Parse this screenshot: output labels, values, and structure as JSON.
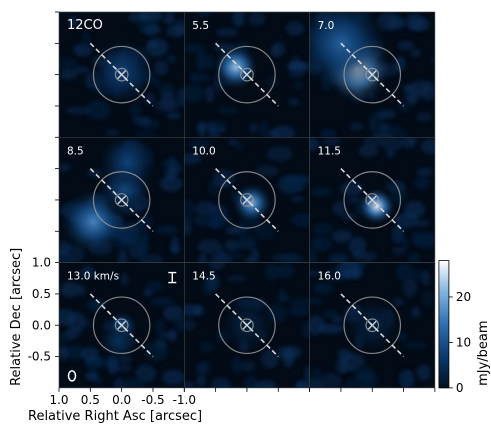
{
  "chart_data": {
    "type": "heatmap",
    "title": "12CO",
    "velocity_unit": "km/s",
    "panels": [
      {
        "label": "12CO",
        "velocity": null,
        "emission": [
          {
            "dx": 0.0,
            "dy": 0.05,
            "peak": 8,
            "sigma": 0.25
          }
        ]
      },
      {
        "label": "5.5",
        "velocity": 5.5,
        "emission": [
          {
            "dx": 0.18,
            "dy": 0.12,
            "peak": 22,
            "sigma": 0.17
          }
        ]
      },
      {
        "label": "7.0",
        "velocity": 7.0,
        "emission": [
          {
            "dx": 0.25,
            "dy": 0.1,
            "peak": 30,
            "sigma": 0.25
          },
          {
            "dx": 0.5,
            "dy": 0.5,
            "peak": 12,
            "sigma": 0.35
          }
        ]
      },
      {
        "label": "8.5",
        "velocity": 8.5,
        "emission": [
          {
            "dx": 0.45,
            "dy": -0.35,
            "peak": 16,
            "sigma": 0.25
          },
          {
            "dx": -0.05,
            "dy": 0.2,
            "peak": 10,
            "sigma": 0.2
          },
          {
            "dx": -0.1,
            "dy": 0.6,
            "peak": 8,
            "sigma": 0.22
          }
        ]
      },
      {
        "label": "10.0",
        "velocity": 10.0,
        "emission": [
          {
            "dx": -0.08,
            "dy": -0.05,
            "peak": 20,
            "sigma": 0.15
          }
        ]
      },
      {
        "label": "11.5",
        "velocity": 11.5,
        "emission": [
          {
            "dx": -0.07,
            "dy": -0.1,
            "peak": 26,
            "sigma": 0.14
          }
        ]
      },
      {
        "label": "13.0 km/s",
        "velocity": 13.0,
        "emission": [
          {
            "dx": 0.0,
            "dy": -0.03,
            "peak": 13,
            "sigma": 0.12
          },
          {
            "dx": 0.05,
            "dy": -0.25,
            "peak": 5,
            "sigma": 0.15
          }
        ]
      },
      {
        "label": "14.5",
        "velocity": 14.5,
        "emission": [
          {
            "dx": 0.0,
            "dy": 0.0,
            "peak": 3,
            "sigma": 0.2
          }
        ]
      },
      {
        "label": "16.0",
        "velocity": 16.0,
        "emission": [
          {
            "dx": 0.0,
            "dy": 0.0,
            "peak": 3,
            "sigma": 0.2
          }
        ]
      }
    ],
    "xlabel": "Relative Right Asc [arcsec]",
    "ylabel": "Relative Dec [arcsec]",
    "xlim": [
      1.0,
      -1.0
    ],
    "ylim": [
      -1.0,
      1.0
    ],
    "xticks": [
      1.0,
      0.5,
      0.0,
      -0.5,
      -1.0
    ],
    "xtick_labels": [
      "1.0",
      "0.5",
      "0.0",
      "-0.5",
      "-1.0"
    ],
    "yticks": [
      -0.5,
      0.0,
      0.5,
      1.0
    ],
    "ytick_labels": [
      "-0.5",
      "0.0",
      "0.5",
      "1.0"
    ],
    "colorbar": {
      "label": "mJy/beam",
      "ticks": [
        0,
        10,
        20
      ],
      "tick_labels": [
        "0",
        "10",
        "20"
      ],
      "range": [
        0,
        28
      ],
      "colors": [
        "#02101f",
        "#0b3a6e",
        "#2f6fb0",
        "#7fb2de",
        "#ffffff"
      ]
    },
    "ellipses_arcsec": [
      0.1,
      0.45
    ],
    "cut_line": {
      "from": [
        0.5,
        0.5
      ],
      "to": [
        -0.5,
        -0.5
      ]
    },
    "beam_label": "beam"
  }
}
